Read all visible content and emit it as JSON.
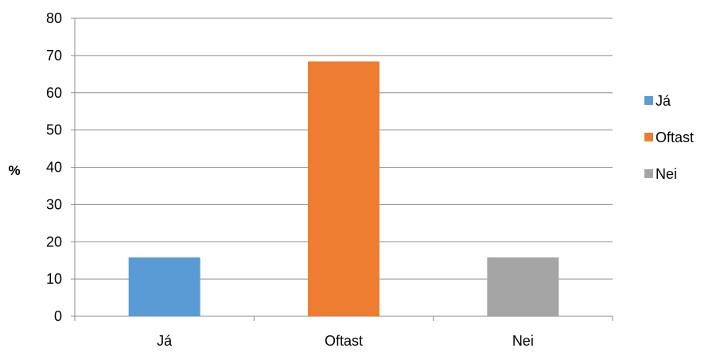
{
  "chart_data": {
    "type": "bar",
    "categories": [
      "Já",
      "Oftast",
      "Nei"
    ],
    "values": [
      15.8,
      68.4,
      15.8
    ],
    "colors": [
      "#5b9bd5",
      "#ed7d31",
      "#a5a5a5"
    ],
    "ylabel": "%",
    "xlabel": "",
    "ylim": [
      0,
      80
    ],
    "yticks": [
      0,
      10,
      20,
      30,
      40,
      50,
      60,
      70,
      80
    ],
    "grid": true,
    "legend": {
      "placement": "right",
      "entries": [
        "Já",
        "Oftast",
        "Nei"
      ]
    }
  }
}
